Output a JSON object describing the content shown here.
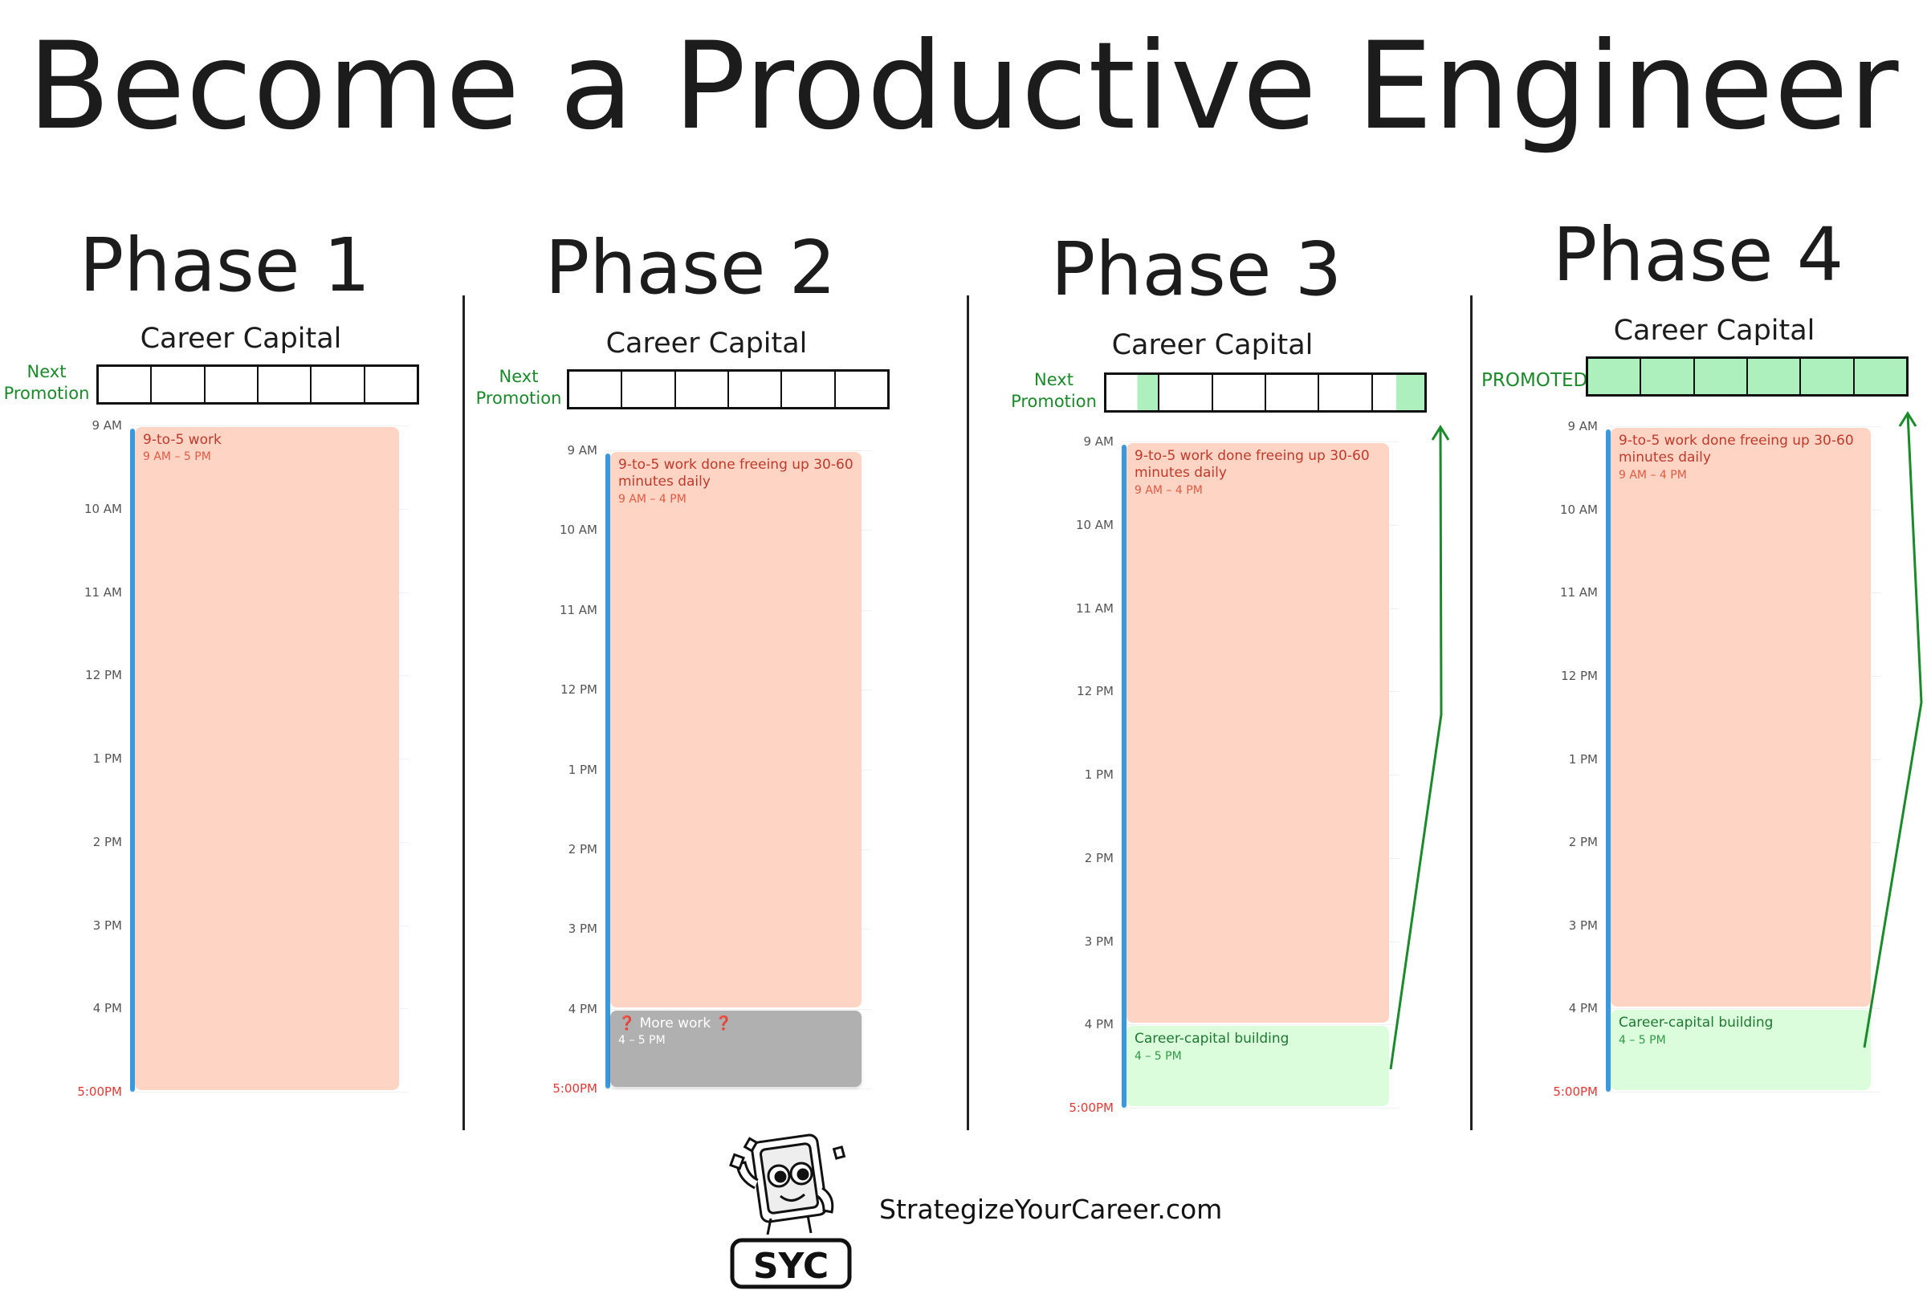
{
  "title": "Become a Productive Engineer",
  "hours": [
    "9 AM",
    "10 AM",
    "11 AM",
    "12 PM",
    "1 PM",
    "2 PM",
    "3 PM",
    "4 PM",
    "5:00PM"
  ],
  "colors": {
    "work": "#fed5c4",
    "career_building": "#dcfddc",
    "more_work": "#b0b0b0",
    "progress_fill": "#aef0bd",
    "accent": "#1a8a2a",
    "timeline": "#3a98dc"
  },
  "phases": [
    {
      "title": "Phase 1",
      "career_capital": "Career Capital",
      "next_promotion": [
        "Next",
        "Promotion"
      ],
      "segments_total": 6,
      "segments_filled": 0,
      "events": [
        {
          "type": "work",
          "title": "9-to-5 work",
          "time": "9 AM – 5 PM"
        }
      ]
    },
    {
      "title": "Phase 2",
      "career_capital": "Career Capital",
      "next_promotion": [
        "Next",
        "Promotion"
      ],
      "segments_total": 6,
      "segments_filled": 0,
      "events": [
        {
          "type": "work",
          "title": "9-to-5 work done freeing up 30-60 minutes daily",
          "time": "9 AM – 4 PM"
        },
        {
          "type": "grey",
          "title": "More work",
          "title_marks": "❓",
          "time": "4 – 5 PM"
        }
      ]
    },
    {
      "title": "Phase 3",
      "career_capital": "Career Capital",
      "next_promotion": [
        "Next",
        "Promotion"
      ],
      "segments_total": 6,
      "segments_filled": 0.4,
      "events": [
        {
          "type": "work",
          "title": "9-to-5 work done freeing up 30-60 minutes daily",
          "time": "9 AM – 4 PM"
        },
        {
          "type": "green",
          "title": "Career-capital building",
          "time": "4 – 5 PM"
        }
      ]
    },
    {
      "title": "Phase 4",
      "career_capital": "Career Capital",
      "next_promotion": [
        "PROMOTED"
      ],
      "segments_total": 6,
      "segments_filled": 6,
      "events": [
        {
          "type": "work",
          "title": "9-to-5 work done freeing up 30-60 minutes daily",
          "time": "9 AM – 4 PM"
        },
        {
          "type": "green",
          "title": "Career-capital building",
          "time": "4 – 5 PM"
        }
      ]
    }
  ],
  "logo": {
    "text": "SYC",
    "icon": "book-mascot-icon"
  },
  "website": "StrategizeYourCareer.com"
}
